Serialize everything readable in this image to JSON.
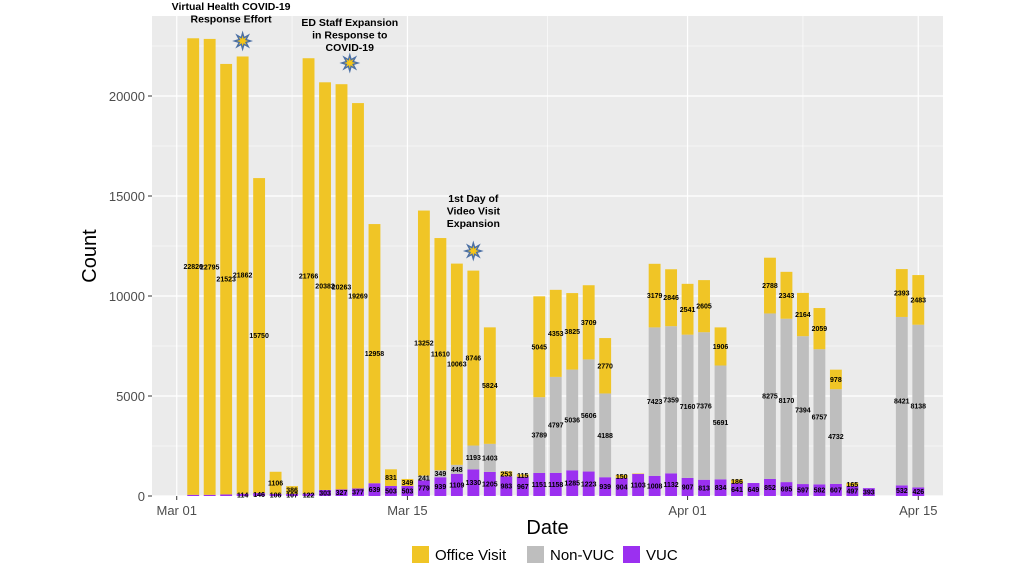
{
  "chart_data": {
    "type": "bar",
    "stacked": true,
    "title": "",
    "xlabel": "Date",
    "ylabel": "Count",
    "ylim": [
      0,
      24000
    ],
    "y_ticks": [
      0,
      5000,
      10000,
      15000,
      20000
    ],
    "y_tick_labels": [
      "0",
      "5000",
      "10000",
      "15000",
      "20000"
    ],
    "x_ticks": [
      0,
      14,
      31,
      45
    ],
    "x_tick_labels": [
      "Mar 01",
      "Mar 15",
      "Apr 01",
      "Apr 15"
    ],
    "x_day_range": [
      -1.5,
      46.5
    ],
    "grid": true,
    "legend_position": "bottom",
    "colors": {
      "office": "#F0C526",
      "nonvuc": "#BEBEBE",
      "vuc": "#9B30F0",
      "panel": "#EBEBEB",
      "grid": "#FFFFFF",
      "star": "#F5C518",
      "star_outline": "#4A6FA5"
    },
    "series": [
      {
        "name": "Office Visit",
        "key": "office"
      },
      {
        "name": "Non-VUC",
        "key": "nonvuc"
      },
      {
        "name": "VUC",
        "key": "vuc"
      }
    ],
    "bars": [
      {
        "day": 1,
        "office": 22826,
        "nonvuc": 0,
        "vuc": 60,
        "labels": {
          "office": "22826"
        }
      },
      {
        "day": 2,
        "office": 22795,
        "nonvuc": 0,
        "vuc": 60,
        "labels": {
          "office": "22795"
        }
      },
      {
        "day": 3,
        "office": 21523,
        "nonvuc": 0,
        "vuc": 80,
        "labels": {
          "office": "21523"
        }
      },
      {
        "day": 4,
        "office": 21862,
        "nonvuc": 0,
        "vuc": 114,
        "labels": {
          "office": "21862",
          "vuc": "114"
        }
      },
      {
        "day": 5,
        "office": 15750,
        "nonvuc": 0,
        "vuc": 146,
        "labels": {
          "office": "15750",
          "vuc": "146"
        }
      },
      {
        "day": 6,
        "office": 1106,
        "nonvuc": 0,
        "vuc": 106,
        "labels": {
          "office": "1106",
          "vuc": "106"
        }
      },
      {
        "day": 7,
        "office": 386,
        "nonvuc": 0,
        "vuc": 107,
        "labels": {
          "office": "386",
          "vuc": "107"
        }
      },
      {
        "day": 8,
        "office": 21766,
        "nonvuc": 0,
        "vuc": 122,
        "labels": {
          "office": "21766",
          "vuc": "122"
        }
      },
      {
        "day": 9,
        "office": 20382,
        "nonvuc": 0,
        "vuc": 303,
        "labels": {
          "office": "20382",
          "vuc": "303"
        }
      },
      {
        "day": 10,
        "office": 20263,
        "nonvuc": 0,
        "vuc": 327,
        "labels": {
          "office": "20263",
          "vuc": "327"
        }
      },
      {
        "day": 11,
        "office": 19269,
        "nonvuc": 0,
        "vuc": 377,
        "labels": {
          "office": "19269",
          "vuc": "377"
        }
      },
      {
        "day": 12,
        "office": 12958,
        "nonvuc": 0,
        "vuc": 639,
        "labels": {
          "office": "12958",
          "vuc": "639"
        }
      },
      {
        "day": 13,
        "office": 831,
        "nonvuc": 0,
        "vuc": 503,
        "labels": {
          "office": "831",
          "vuc": "503"
        }
      },
      {
        "day": 14,
        "office": 349,
        "nonvuc": 0,
        "vuc": 503,
        "labels": {
          "office": "349",
          "vuc": "503"
        }
      },
      {
        "day": 15,
        "office": 13252,
        "nonvuc": 241,
        "vuc": 779,
        "labels": {
          "office": "13252",
          "nonvuc": "241",
          "vuc": "779"
        }
      },
      {
        "day": 16,
        "office": 11610,
        "nonvuc": 349,
        "vuc": 939,
        "labels": {
          "office": "11610",
          "nonvuc": "349",
          "vuc": "939"
        }
      },
      {
        "day": 17,
        "office": 10063,
        "nonvuc": 448,
        "vuc": 1109,
        "labels": {
          "office": "10063",
          "nonvuc": "448",
          "vuc": "1109"
        }
      },
      {
        "day": 18,
        "office": 8746,
        "nonvuc": 1193,
        "vuc": 1330,
        "labels": {
          "office": "8746",
          "nonvuc": "1193",
          "vuc": "1330"
        }
      },
      {
        "day": 19,
        "office": 5824,
        "nonvuc": 1403,
        "vuc": 1205,
        "labels": {
          "office": "5824",
          "nonvuc": "1403",
          "vuc": "1205"
        }
      },
      {
        "day": 20,
        "office": 253,
        "nonvuc": 0,
        "vuc": 983,
        "labels": {
          "office": "253",
          "vuc": "983"
        }
      },
      {
        "day": 21,
        "office": 115,
        "nonvuc": 0,
        "vuc": 967,
        "labels": {
          "office": "115",
          "vuc": "967"
        }
      },
      {
        "day": 22,
        "office": 5045,
        "nonvuc": 3789,
        "vuc": 1151,
        "labels": {
          "office": "5045",
          "nonvuc": "3789",
          "vuc": "1151"
        }
      },
      {
        "day": 23,
        "office": 4353,
        "nonvuc": 4797,
        "vuc": 1158,
        "labels": {
          "office": "4353",
          "nonvuc": "4797",
          "vuc": "1158"
        }
      },
      {
        "day": 24,
        "office": 3825,
        "nonvuc": 5036,
        "vuc": 1285,
        "labels": {
          "office": "3825",
          "nonvuc": "5036",
          "vuc": "1285"
        }
      },
      {
        "day": 25,
        "office": 3709,
        "nonvuc": 5606,
        "vuc": 1223,
        "labels": {
          "office": "3709",
          "nonvuc": "5606",
          "vuc": "1223"
        }
      },
      {
        "day": 26,
        "office": 2770,
        "nonvuc": 4188,
        "vuc": 939,
        "labels": {
          "office": "2770",
          "nonvuc": "4188",
          "vuc": "939"
        }
      },
      {
        "day": 27,
        "office": 150,
        "nonvuc": 0,
        "vuc": 904,
        "labels": {
          "office": "150",
          "vuc": "904"
        }
      },
      {
        "day": 28,
        "office": 20,
        "nonvuc": 0,
        "vuc": 1103,
        "labels": {
          "vuc": "1103"
        }
      },
      {
        "day": 29,
        "office": 3179,
        "nonvuc": 7423,
        "vuc": 1008,
        "labels": {
          "office": "3179",
          "nonvuc": "7423",
          "vuc": "1008"
        }
      },
      {
        "day": 30,
        "office": 2846,
        "nonvuc": 7359,
        "vuc": 1132,
        "labels": {
          "office": "2846",
          "nonvuc": "7359",
          "vuc": "1132"
        }
      },
      {
        "day": 31,
        "office": 2541,
        "nonvuc": 7160,
        "vuc": 907,
        "labels": {
          "office": "2541",
          "nonvuc": "7160",
          "vuc": "907"
        }
      },
      {
        "day": 32,
        "office": 2605,
        "nonvuc": 7376,
        "vuc": 813,
        "labels": {
          "office": "2605",
          "nonvuc": "7376",
          "vuc": "813"
        }
      },
      {
        "day": 33,
        "office": 1906,
        "nonvuc": 5691,
        "vuc": 834,
        "labels": {
          "office": "1906",
          "nonvuc": "5691",
          "vuc": "834"
        }
      },
      {
        "day": 34,
        "office": 186,
        "nonvuc": 0,
        "vuc": 641,
        "labels": {
          "office": "186",
          "vuc": "641"
        }
      },
      {
        "day": 35,
        "office": 0,
        "nonvuc": 0,
        "vuc": 649,
        "labels": {
          "vuc": "649"
        }
      },
      {
        "day": 36,
        "office": 2788,
        "nonvuc": 8275,
        "vuc": 852,
        "labels": {
          "office": "2788",
          "nonvuc": "8275",
          "vuc": "852"
        }
      },
      {
        "day": 37,
        "office": 2343,
        "nonvuc": 8170,
        "vuc": 695,
        "labels": {
          "office": "2343",
          "nonvuc": "8170",
          "vuc": "695"
        }
      },
      {
        "day": 38,
        "office": 2164,
        "nonvuc": 7394,
        "vuc": 597,
        "labels": {
          "office": "2164",
          "nonvuc": "7394",
          "vuc": "597"
        }
      },
      {
        "day": 39,
        "office": 2059,
        "nonvuc": 6757,
        "vuc": 582,
        "labels": {
          "office": "2059",
          "nonvuc": "6757",
          "vuc": "582"
        }
      },
      {
        "day": 40,
        "office": 978,
        "nonvuc": 4732,
        "vuc": 607,
        "labels": {
          "office": "978",
          "nonvuc": "4732",
          "vuc": "607"
        }
      },
      {
        "day": 41,
        "office": 165,
        "nonvuc": 0,
        "vuc": 497,
        "labels": {
          "office": "165",
          "vuc": "497"
        }
      },
      {
        "day": 42,
        "office": 0,
        "nonvuc": 0,
        "vuc": 393,
        "labels": {
          "vuc": "393"
        }
      },
      {
        "day": 44,
        "office": 2393,
        "nonvuc": 8421,
        "vuc": 532,
        "labels": {
          "office": "2393",
          "nonvuc": "8421",
          "vuc": "532"
        }
      },
      {
        "day": 45,
        "office": 2483,
        "nonvuc": 8138,
        "vuc": 426,
        "labels": {
          "office": "2483",
          "nonvuc": "8138",
          "vuc": "426"
        }
      }
    ],
    "annotations": [
      {
        "lines": [
          "Virtual Health COVID-19",
          "Response Effort"
        ],
        "day": 3.3,
        "y": 24300,
        "star_day": 4,
        "star_y": 22750
      },
      {
        "lines": [
          "ED Staff Expansion",
          "in Response to",
          "COVID-19"
        ],
        "day": 10.5,
        "y": 23500,
        "star_day": 10.5,
        "star_y": 21650
      },
      {
        "lines": [
          "1st Day of",
          "Video Visit",
          "Expansion"
        ],
        "day": 18,
        "y": 14700,
        "star_day": 18,
        "star_y": 12250
      }
    ]
  }
}
